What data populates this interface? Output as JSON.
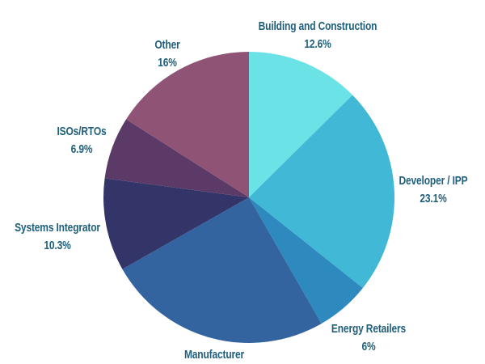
{
  "chart_data": {
    "type": "pie",
    "title": "",
    "start_angle_deg": 0,
    "direction": "clockwise",
    "legend_position": "none",
    "labels_outside": true,
    "label_text_color": "#1F5F7B",
    "background_color": "#FFFFFF",
    "slices": [
      {
        "label": "Building and Construction",
        "value": 12.6,
        "percent_label": "12.6%",
        "color": "#6BE2E5"
      },
      {
        "label": "Developer / IPP",
        "value": 23.1,
        "percent_label": "23.1%",
        "color": "#41B8D5"
      },
      {
        "label": "Energy Retailers",
        "value": 6,
        "percent_label": "6%",
        "color": "#2E89BE"
      },
      {
        "label": "Manufacturer",
        "value": 25.1,
        "percent_label": "",
        "color": "#33649F"
      },
      {
        "label": "Systems Integrator",
        "value": 10.3,
        "percent_label": "10.3%",
        "color": "#333569"
      },
      {
        "label": "ISOs/RTOs",
        "value": 6.9,
        "percent_label": "6.9%",
        "color": "#5B3A67"
      },
      {
        "label": "Other",
        "value": 16,
        "percent_label": "16%",
        "color": "#8E5375"
      }
    ]
  }
}
